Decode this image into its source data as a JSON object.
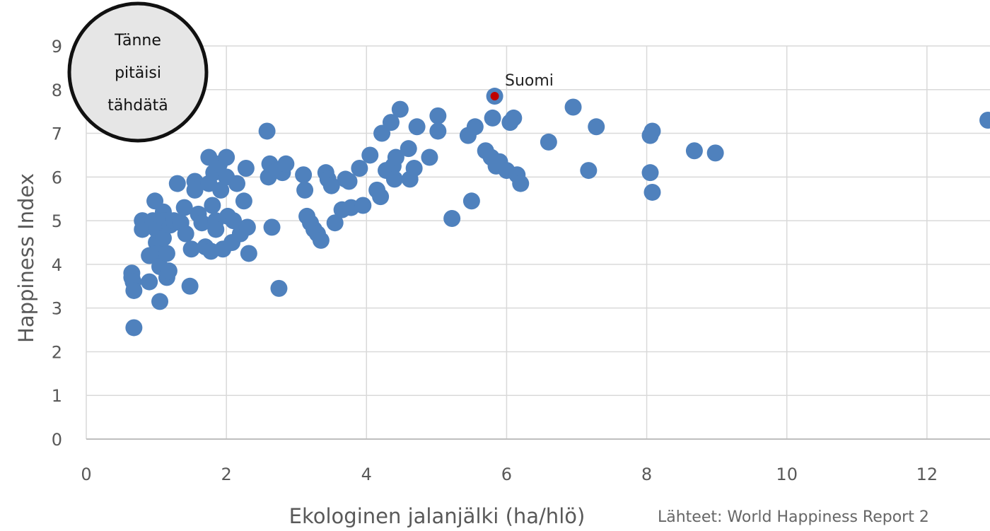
{
  "chart_data": {
    "type": "scatter",
    "xlabel": "Ekologinen jalanjälki (ha/hlö)",
    "ylabel": "Happiness Index",
    "xlim": [
      0,
      12.9
    ],
    "ylim": [
      0,
      9
    ],
    "x_ticks": [
      "0",
      "2",
      "4",
      "6",
      "8",
      "10",
      "12"
    ],
    "y_ticks": [
      "0",
      "1",
      "2",
      "3",
      "4",
      "5",
      "6",
      "7",
      "8",
      "9"
    ],
    "grid": true,
    "source": "Lähteet: World Happiness Report 2",
    "colors": {
      "points": "#4f81bd",
      "highlight": "#c00000",
      "grid": "#d9d9d9"
    },
    "annotation": {
      "label": "Suomi",
      "x": 5.83,
      "y": 7.85
    },
    "target_zone": {
      "lines": [
        "Tänne",
        "pitäisi",
        "tähdätä"
      ]
    },
    "points": [
      [
        0.65,
        3.8
      ],
      [
        0.65,
        3.7
      ],
      [
        0.67,
        3.6
      ],
      [
        0.68,
        3.4
      ],
      [
        0.68,
        2.55
      ],
      [
        0.8,
        5.0
      ],
      [
        0.8,
        4.8
      ],
      [
        0.85,
        4.9
      ],
      [
        0.9,
        4.2
      ],
      [
        0.9,
        3.6
      ],
      [
        0.95,
        5.0
      ],
      [
        0.98,
        5.45
      ],
      [
        1.0,
        4.5
      ],
      [
        1.0,
        4.8
      ],
      [
        1.02,
        4.25
      ],
      [
        1.05,
        3.95
      ],
      [
        1.05,
        3.15
      ],
      [
        1.1,
        4.6
      ],
      [
        1.1,
        5.2
      ],
      [
        1.12,
        5.0
      ],
      [
        1.15,
        4.25
      ],
      [
        1.15,
        3.7
      ],
      [
        1.18,
        3.85
      ],
      [
        1.2,
        4.9
      ],
      [
        1.25,
        5.0
      ],
      [
        1.3,
        5.85
      ],
      [
        1.35,
        4.95
      ],
      [
        1.4,
        5.3
      ],
      [
        1.42,
        4.7
      ],
      [
        1.48,
        3.5
      ],
      [
        1.5,
        4.35
      ],
      [
        1.55,
        5.9
      ],
      [
        1.55,
        5.7
      ],
      [
        1.6,
        5.15
      ],
      [
        1.65,
        4.95
      ],
      [
        1.7,
        4.4
      ],
      [
        1.75,
        6.45
      ],
      [
        1.75,
        5.85
      ],
      [
        1.78,
        4.3
      ],
      [
        1.8,
        5.35
      ],
      [
        1.82,
        6.1
      ],
      [
        1.85,
        5.0
      ],
      [
        1.85,
        4.8
      ],
      [
        1.9,
        6.3
      ],
      [
        1.92,
        5.7
      ],
      [
        1.95,
        4.35
      ],
      [
        2.0,
        6.45
      ],
      [
        2.0,
        6.0
      ],
      [
        2.02,
        5.1
      ],
      [
        2.08,
        4.5
      ],
      [
        2.1,
        5.0
      ],
      [
        2.15,
        5.85
      ],
      [
        2.2,
        4.7
      ],
      [
        2.25,
        5.45
      ],
      [
        2.28,
        6.2
      ],
      [
        2.3,
        4.85
      ],
      [
        2.32,
        4.25
      ],
      [
        2.58,
        7.05
      ],
      [
        2.6,
        6.0
      ],
      [
        2.62,
        6.3
      ],
      [
        2.65,
        4.85
      ],
      [
        2.72,
        6.15
      ],
      [
        2.75,
        3.45
      ],
      [
        2.8,
        6.1
      ],
      [
        2.85,
        6.3
      ],
      [
        3.1,
        6.05
      ],
      [
        3.12,
        5.7
      ],
      [
        3.15,
        5.1
      ],
      [
        3.2,
        4.95
      ],
      [
        3.25,
        4.8
      ],
      [
        3.3,
        4.7
      ],
      [
        3.35,
        4.55
      ],
      [
        3.42,
        6.1
      ],
      [
        3.45,
        5.95
      ],
      [
        3.5,
        5.8
      ],
      [
        3.55,
        4.95
      ],
      [
        3.65,
        5.25
      ],
      [
        3.7,
        5.95
      ],
      [
        3.75,
        5.9
      ],
      [
        3.78,
        5.3
      ],
      [
        3.9,
        6.2
      ],
      [
        3.95,
        5.35
      ],
      [
        4.05,
        6.5
      ],
      [
        4.15,
        5.7
      ],
      [
        4.2,
        5.55
      ],
      [
        4.22,
        7.0
      ],
      [
        4.28,
        6.15
      ],
      [
        4.35,
        7.25
      ],
      [
        4.38,
        6.25
      ],
      [
        4.4,
        5.95
      ],
      [
        4.42,
        6.45
      ],
      [
        4.48,
        7.55
      ],
      [
        4.6,
        6.65
      ],
      [
        4.62,
        5.95
      ],
      [
        4.68,
        6.2
      ],
      [
        4.72,
        7.15
      ],
      [
        4.9,
        6.45
      ],
      [
        5.02,
        7.4
      ],
      [
        5.02,
        7.05
      ],
      [
        5.22,
        5.05
      ],
      [
        5.45,
        6.95
      ],
      [
        5.5,
        5.45
      ],
      [
        5.55,
        7.15
      ],
      [
        5.7,
        6.6
      ],
      [
        5.78,
        6.45
      ],
      [
        5.8,
        7.35
      ],
      [
        5.85,
        6.25
      ],
      [
        5.9,
        6.35
      ],
      [
        6.0,
        6.15
      ],
      [
        6.05,
        7.25
      ],
      [
        6.1,
        7.35
      ],
      [
        6.15,
        6.05
      ],
      [
        6.2,
        5.85
      ],
      [
        6.6,
        6.8
      ],
      [
        6.95,
        7.6
      ],
      [
        7.17,
        6.15
      ],
      [
        7.28,
        7.15
      ],
      [
        8.05,
        6.95
      ],
      [
        8.08,
        7.05
      ],
      [
        8.05,
        6.1
      ],
      [
        8.08,
        5.65
      ],
      [
        8.68,
        6.6
      ],
      [
        8.98,
        6.55
      ],
      [
        12.87,
        7.3
      ]
    ]
  }
}
